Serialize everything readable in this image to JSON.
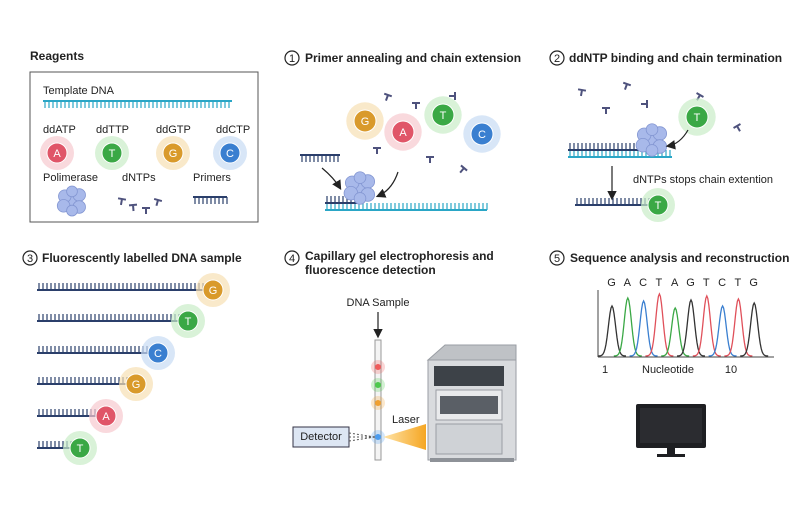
{
  "reagents": {
    "title": "Reagents",
    "template": "Template DNA",
    "dd": [
      "ddATP",
      "ddTTP",
      "ddGTP",
      "ddCTP"
    ],
    "items": [
      "Polimerase",
      "dNTPs",
      "Primers"
    ]
  },
  "bases": [
    "A",
    "T",
    "G",
    "C"
  ],
  "step1": {
    "number": "1",
    "title": "Primer annealing and chain extension"
  },
  "step2": {
    "number": "2",
    "title": "ddNTP binding and chain termination",
    "note": "dNTPs stops chain extention"
  },
  "step3": {
    "number": "3",
    "title": "Fluorescently labelled DNA sample"
  },
  "step4": {
    "number": "4",
    "title": [
      "Capillary gel electrophoresis and",
      "fluorescence detection"
    ],
    "sample": "DNA Sample",
    "laser": "Laser",
    "detector": "Detector"
  },
  "step5": {
    "number": "5",
    "title": "Sequence analysis and reconstruction",
    "sequence": [
      "G",
      "A",
      "C",
      "T",
      "A",
      "G",
      "T",
      "C",
      "T",
      "G"
    ],
    "axis_start": "1",
    "axis_label": "Nucleotide",
    "axis_end": "10"
  }
}
